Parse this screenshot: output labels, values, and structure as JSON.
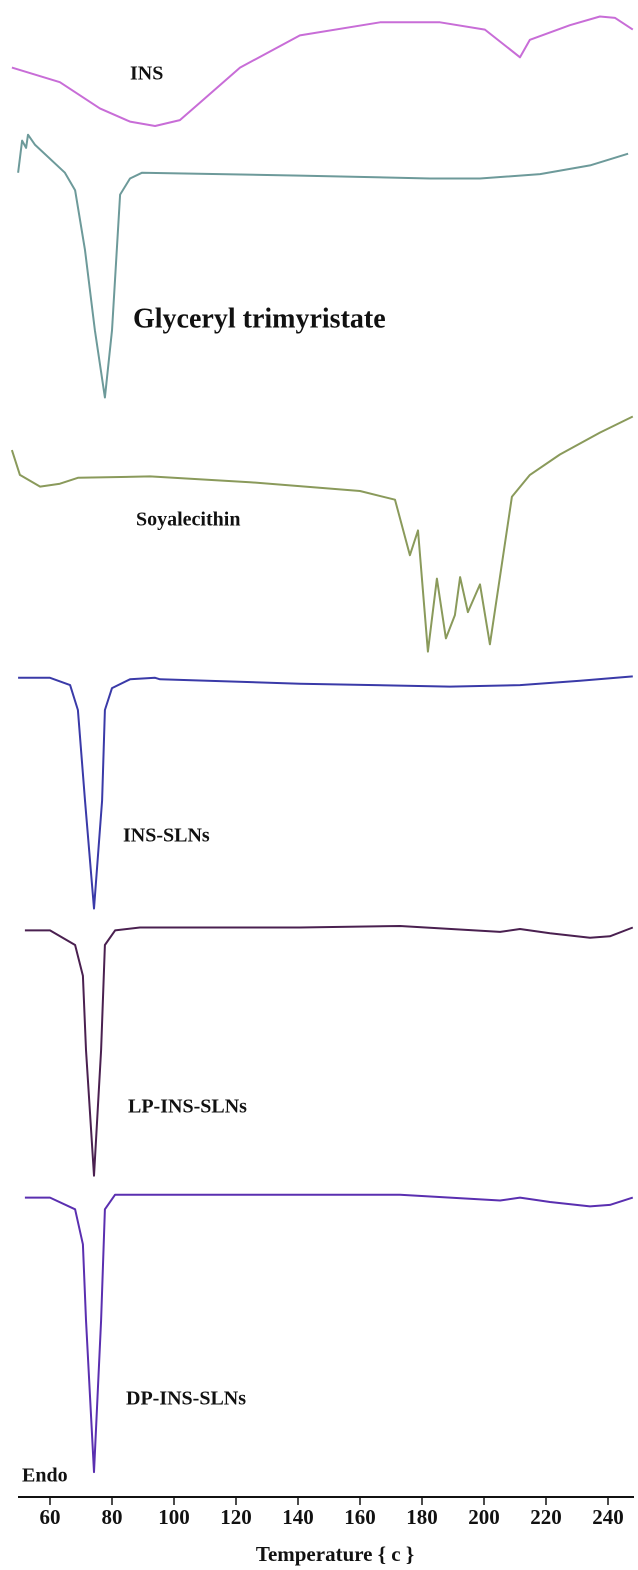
{
  "chart_data": {
    "type": "line",
    "xlabel": "Temperature { c }",
    "annotation": "Endo",
    "xlim": [
      47,
      248
    ],
    "xticks": [
      60,
      80,
      100,
      120,
      140,
      160,
      180,
      200,
      220,
      240
    ],
    "ylim": [
      0,
      100
    ],
    "series": [
      {
        "name": "INS",
        "color": "#c86dd7",
        "x": [
          47.7,
          63.2,
          76.1,
          85.8,
          93.9,
          101.9,
          108.4,
          121.3,
          140.6,
          166.5,
          185.8,
          200.3,
          211.6,
          214.8,
          227.7,
          237.4,
          242.3,
          248
        ],
        "values": [
          96.4,
          95.4,
          93.6,
          92.7,
          92.4,
          92.8,
          94.0,
          96.4,
          98.6,
          99.5,
          99.5,
          99.0,
          97.1,
          98.3,
          99.3,
          99.9,
          99.8,
          99.0
        ]
      },
      {
        "name": "Glyceryl trimyristate",
        "color": "#6d9a9a",
        "x": [
          49.7,
          51.0,
          52.3,
          52.9,
          55.2,
          64.8,
          68.1,
          71.3,
          74.5,
          77.7,
          80.0,
          82.6,
          85.8,
          89.7,
          140.6,
          182.6,
          198.7,
          218.1,
          234.2,
          246.5
        ],
        "values": [
          89.2,
          91.4,
          90.9,
          91.8,
          91.1,
          89.2,
          88.0,
          83.9,
          78.4,
          73.8,
          78.4,
          87.7,
          88.8,
          89.2,
          89.0,
          88.8,
          88.8,
          89.1,
          89.7,
          90.5
        ]
      },
      {
        "name": "Soyalecithin",
        "color": "#8a9a5b",
        "x": [
          47.7,
          50.3,
          56.8,
          63.2,
          69.0,
          92.3,
          124.5,
          160.0,
          171.3,
          176.1,
          178.7,
          181.9,
          184.8,
          187.7,
          190.6,
          192.3,
          194.8,
          198.7,
          201.9,
          209.0,
          214.8,
          224.5,
          237.4,
          248
        ],
        "values": [
          70.2,
          68.5,
          67.7,
          67.9,
          68.3,
          68.4,
          68.0,
          67.4,
          66.8,
          63.0,
          64.7,
          56.4,
          61.4,
          57.3,
          58.9,
          61.5,
          59.1,
          61.0,
          56.9,
          67.0,
          68.5,
          69.9,
          71.4,
          72.5
        ]
      },
      {
        "name": "INS-SLNs",
        "color": "#3a3aa8",
        "x": [
          49.7,
          60,
          66.5,
          69.0,
          71.3,
          74.2,
          76.8,
          77.7,
          80.0,
          85.8,
          93.9,
          95.5,
          140.6,
          189.0,
          211.6,
          231.0,
          248
        ],
        "values": [
          54.6,
          54.6,
          54.1,
          52.4,
          46.2,
          38.8,
          46.2,
          52.4,
          53.9,
          54.5,
          54.6,
          54.5,
          54.2,
          54.0,
          54.1,
          54.4,
          54.7
        ]
      },
      {
        "name": "LP-INS-SLNs",
        "color": "#4a2050",
        "x": [
          51.9,
          60,
          68.1,
          70.6,
          71.6,
          74.2,
          76.5,
          77.7,
          81.0,
          89.0,
          140.6,
          172.9,
          205.2,
          211.6,
          221.3,
          234.2,
          240.6,
          248
        ],
        "values": [
          37.3,
          37.3,
          36.3,
          34.2,
          29.1,
          20.5,
          29.1,
          36.3,
          37.3,
          37.5,
          37.5,
          37.6,
          37.2,
          37.4,
          37.1,
          36.8,
          36.9,
          37.5
        ]
      },
      {
        "name": "DP-INS-SLNs",
        "color": "#5a2fb0",
        "x": [
          51.9,
          60,
          68.1,
          70.6,
          71.6,
          74.2,
          76.5,
          77.7,
          81.0,
          89.0,
          140.6,
          172.9,
          205.2,
          211.6,
          221.3,
          234.2,
          240.6,
          248
        ],
        "values": [
          19.0,
          19.0,
          18.2,
          15.8,
          10.6,
          0.2,
          10.6,
          18.2,
          19.2,
          19.2,
          19.2,
          19.2,
          18.8,
          19.0,
          18.7,
          18.4,
          18.5,
          19.0
        ]
      }
    ]
  }
}
